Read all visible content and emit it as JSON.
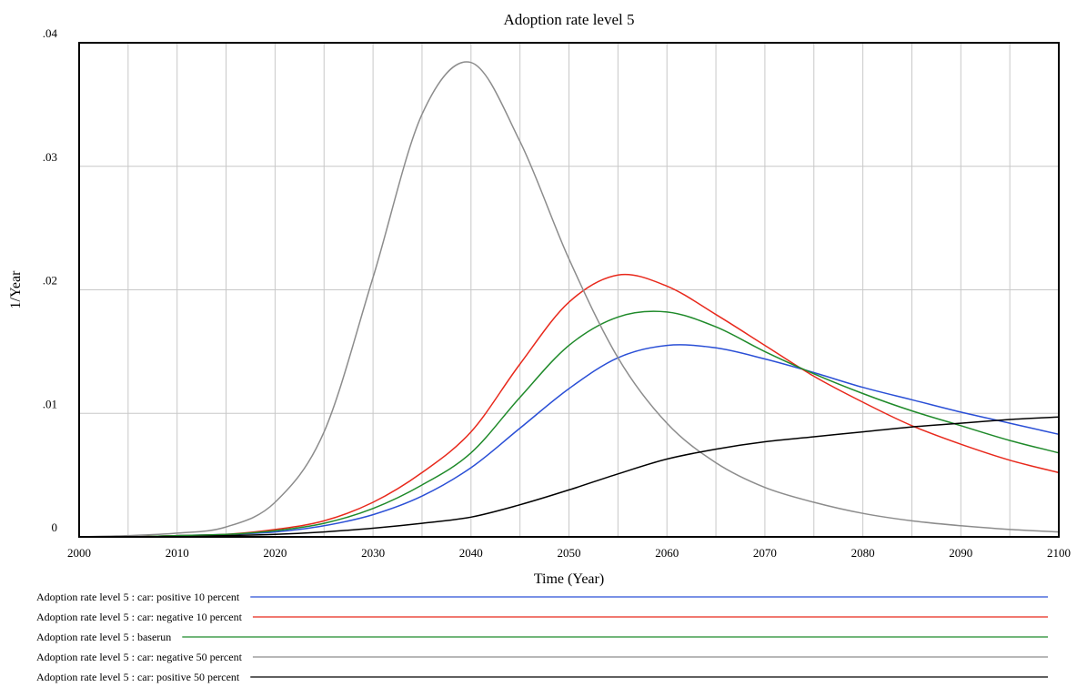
{
  "chart_data": {
    "type": "line",
    "title": "Adoption rate level 5",
    "xlabel": "Time (Year)",
    "ylabel": "1/Year",
    "xlim": [
      2000,
      2100
    ],
    "ylim": [
      0,
      0.04
    ],
    "grid": true,
    "legend_position": "bottom",
    "x_ticks": [
      {
        "value": 2000,
        "label": "2000"
      },
      {
        "value": 2010,
        "label": "2010"
      },
      {
        "value": 2020,
        "label": "2020"
      },
      {
        "value": 2030,
        "label": "2030"
      },
      {
        "value": 2040,
        "label": "2040"
      },
      {
        "value": 2050,
        "label": "2050"
      },
      {
        "value": 2060,
        "label": "2060"
      },
      {
        "value": 2070,
        "label": "2070"
      },
      {
        "value": 2080,
        "label": "2080"
      },
      {
        "value": 2090,
        "label": "2090"
      },
      {
        "value": 2100,
        "label": "2100"
      }
    ],
    "y_ticks": [
      {
        "value": 0,
        "label": "0"
      },
      {
        "value": 0.01,
        "label": ".01"
      },
      {
        "value": 0.02,
        "label": ".02"
      },
      {
        "value": 0.03,
        "label": ".03"
      },
      {
        "value": 0.04,
        "label": ".04"
      }
    ],
    "x": [
      2000,
      2005,
      2010,
      2015,
      2020,
      2025,
      2030,
      2035,
      2040,
      2045,
      2050,
      2055,
      2060,
      2065,
      2070,
      2075,
      2080,
      2085,
      2090,
      2095,
      2100
    ],
    "series": [
      {
        "name": "Adoption rate level 5 : car: positive 10 percent",
        "color": "#2a4fd6",
        "values": [
          0,
          0,
          0.0001,
          0.0002,
          0.0004,
          0.0009,
          0.0018,
          0.0033,
          0.0056,
          0.0088,
          0.012,
          0.0145,
          0.0155,
          0.0153,
          0.0144,
          0.0133,
          0.0121,
          0.0111,
          0.0101,
          0.0092,
          0.0083
        ]
      },
      {
        "name": "Adoption rate level 5 : car: negative 10 percent",
        "color": "#e8291c",
        "values": [
          0,
          0,
          0.0001,
          0.0002,
          0.0006,
          0.0013,
          0.0028,
          0.0052,
          0.0085,
          0.014,
          0.019,
          0.0212,
          0.0203,
          0.018,
          0.0155,
          0.013,
          0.0109,
          0.009,
          0.0075,
          0.0062,
          0.0052
        ]
      },
      {
        "name": "Adoption rate level 5 : baserun",
        "color": "#1f8a2a",
        "values": [
          0,
          0,
          0.0001,
          0.0002,
          0.0005,
          0.0011,
          0.0023,
          0.0042,
          0.0068,
          0.0113,
          0.0155,
          0.0178,
          0.0182,
          0.017,
          0.015,
          0.0132,
          0.0116,
          0.0102,
          0.009,
          0.0078,
          0.0068
        ]
      },
      {
        "name": "Adoption rate level 5 : car: negative 50 percent",
        "color": "#8c8c8c",
        "values": [
          0,
          0.0001,
          0.0003,
          0.0008,
          0.0028,
          0.0085,
          0.021,
          0.0342,
          0.0384,
          0.032,
          0.0225,
          0.0145,
          0.0092,
          0.006,
          0.004,
          0.0028,
          0.0019,
          0.0013,
          0.0009,
          0.0006,
          0.0004
        ]
      },
      {
        "name": "Adoption rate level 5 : car: positive 50 percent",
        "color": "#000000",
        "values": [
          0,
          0,
          0,
          0.0001,
          0.0002,
          0.0004,
          0.0007,
          0.0011,
          0.0016,
          0.0026,
          0.0038,
          0.0051,
          0.0063,
          0.0071,
          0.0077,
          0.0081,
          0.0085,
          0.0089,
          0.0092,
          0.0095,
          0.0097
        ]
      }
    ]
  }
}
